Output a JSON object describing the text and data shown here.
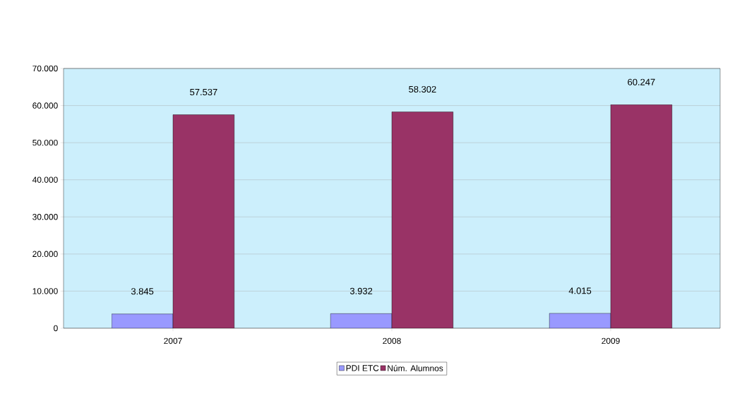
{
  "chart_data": {
    "type": "bar",
    "categories": [
      "2007",
      "2008",
      "2009"
    ],
    "series": [
      {
        "name": "PDI ETC",
        "color": "#9999ff",
        "values": [
          3845,
          3932,
          4015
        ],
        "value_labels": [
          "3.845",
          "3.932",
          "4.015"
        ]
      },
      {
        "name": "Núm. Alumnos",
        "color": "#993366",
        "values": [
          57537,
          58302,
          60247
        ],
        "value_labels": [
          "57.537",
          "58.302",
          "60.247"
        ]
      }
    ],
    "ylim": [
      0,
      70000
    ],
    "yticks": [
      0,
      {
        "value": 10000,
        "label": "10.000"
      },
      {
        "value": 20000,
        "label": "20.000"
      },
      {
        "value": 30000,
        "label": "30.000"
      },
      {
        "value": 40000,
        "label": "40.000"
      },
      {
        "value": 50000,
        "label": "50.000"
      },
      {
        "value": 60000,
        "label": "60.000"
      },
      {
        "value": 70000,
        "label": "70.000"
      }
    ],
    "grid": "y",
    "legend": "bottom"
  }
}
